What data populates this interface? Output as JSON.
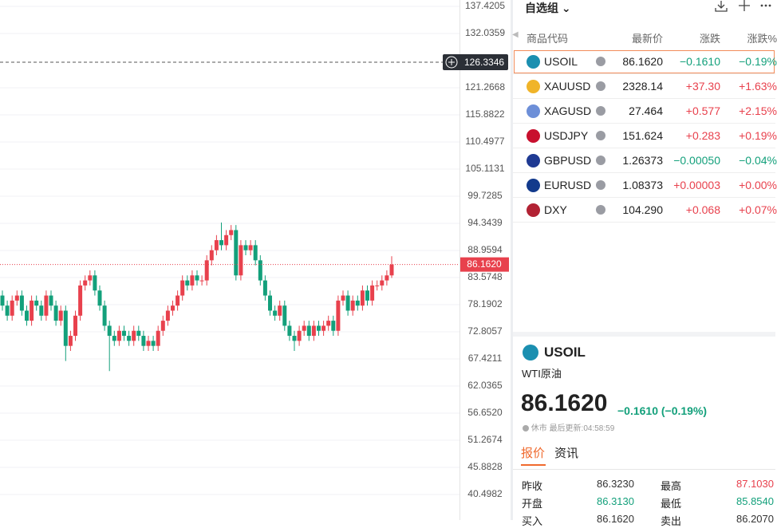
{
  "chart_data": {
    "type": "candlestick",
    "open": [
      80,
      78,
      76,
      79,
      80,
      77,
      75,
      79,
      78,
      76,
      80,
      78,
      75,
      77,
      70,
      72,
      76,
      82,
      83,
      84,
      81,
      78,
      74,
      72,
      71,
      73,
      72,
      71,
      73,
      72,
      70,
      71,
      70,
      73,
      75,
      77,
      78,
      80,
      83,
      82,
      84,
      83,
      83,
      87,
      89,
      91,
      90,
      92,
      93,
      84,
      90,
      89,
      90,
      87,
      83,
      80,
      77,
      76,
      78,
      74,
      72,
      71,
      73,
      74,
      72,
      74,
      73,
      74,
      75,
      73,
      79,
      80,
      77,
      79,
      78,
      81,
      79,
      82,
      82,
      83,
      84
    ],
    "high": [
      81,
      79,
      80,
      81,
      81,
      78,
      80,
      80,
      79,
      81,
      81,
      79,
      78,
      78,
      73,
      77,
      83,
      84,
      85,
      85,
      82,
      79,
      75,
      73,
      74,
      74,
      73,
      74,
      74,
      73,
      72,
      72,
      74,
      76,
      78,
      79,
      81,
      84,
      84,
      85,
      85,
      84,
      88,
      90,
      92,
      94.5,
      93,
      94,
      94,
      91,
      91,
      91,
      91,
      88,
      84,
      81,
      78,
      79,
      79,
      75,
      73,
      74,
      75,
      75,
      75,
      75,
      75,
      76,
      76,
      80,
      81,
      81,
      80,
      80,
      82,
      82,
      83,
      83,
      84,
      85,
      87.8
    ],
    "low": [
      77,
      75,
      75,
      78,
      76,
      74,
      74,
      77,
      75,
      75,
      77,
      74,
      74,
      67,
      69,
      71,
      75,
      81,
      82,
      80,
      77,
      73,
      65,
      70,
      70,
      71,
      70,
      70,
      71,
      69,
      69,
      69,
      69,
      72,
      74,
      76,
      77,
      79,
      81,
      81,
      82,
      82,
      82,
      86,
      88,
      89,
      89,
      91,
      83,
      83,
      88,
      88,
      86,
      82,
      79,
      76,
      75,
      75,
      73,
      71,
      69,
      70,
      72,
      71,
      71,
      72,
      72,
      73,
      72,
      72,
      78,
      76,
      76,
      77,
      77,
      78,
      78,
      81,
      81,
      82,
      83.5
    ],
    "close": [
      78,
      76,
      79,
      80,
      77,
      75,
      79,
      78,
      76,
      80,
      78,
      75,
      77,
      70,
      72,
      76,
      82,
      83,
      84,
      81,
      78,
      74,
      72,
      71,
      73,
      72,
      71,
      73,
      72,
      70,
      71,
      70,
      73,
      75,
      77,
      78,
      80,
      83,
      82,
      84,
      83,
      83,
      87,
      89,
      91,
      90,
      92,
      93,
      84,
      90,
      89,
      90,
      87,
      83,
      80,
      77,
      76,
      78,
      74,
      72,
      71,
      73,
      74,
      72,
      74,
      73,
      74,
      75,
      73,
      79,
      80,
      77,
      79,
      78,
      81,
      79,
      82,
      82,
      83,
      84,
      86.162
    ],
    "ylim": [
      35.42,
      138.69
    ],
    "yticks": [
      137.4205,
      132.0359,
      121.2668,
      115.8822,
      110.4977,
      105.1131,
      99.7285,
      94.3439,
      88.9594,
      83.5748,
      78.1902,
      72.8057,
      67.4211,
      62.0365,
      {
        "value": 56.652,
        "label": "56.6520"
      },
      51.2674,
      45.8828,
      40.4982
    ],
    "last_price": {
      "value": 86.162,
      "label": "86.1620"
    },
    "crosshair": 126.3346,
    "up_color": "#e8414d",
    "down_color": "#13a07b",
    "grid": true
  },
  "watchlist": {
    "title": "自选组",
    "columns": [
      "商品代码",
      "最新价",
      "涨跌",
      "涨跌%"
    ],
    "rows": [
      {
        "symbol": "USOIL",
        "price": "86.1620",
        "change": "−0.1610",
        "pct": "−0.19%",
        "color": "#13a07b",
        "icon": "#1b8fb0"
      },
      {
        "symbol": "XAUUSD",
        "price": "2328.14",
        "change": "+37.30",
        "pct": "+1.63%",
        "color": "#e8414d",
        "icon": "#f0b429"
      },
      {
        "symbol": "XAGUSD",
        "price": "27.464",
        "change": "+0.577",
        "pct": "+2.15%",
        "color": "#e8414d",
        "icon": "#6d8fd8"
      },
      {
        "symbol": "USDJPY",
        "price": "151.624",
        "change": "+0.283",
        "pct": "+0.19%",
        "color": "#e8414d",
        "icon": "#c8102e"
      },
      {
        "symbol": "GBPUSD",
        "price": "1.26373",
        "change": "−0.00050",
        "pct": "−0.04%",
        "color": "#13a07b",
        "icon": "#1f3a93"
      },
      {
        "symbol": "EURUSD",
        "price": "1.08373",
        "change": "+0.00003",
        "pct": "+0.00%",
        "color": "#e8414d",
        "icon": "#123a8c"
      },
      {
        "symbol": "DXY",
        "price": "104.290",
        "change": "+0.068",
        "pct": "+0.07%",
        "color": "#e8414d",
        "icon": "#b22234"
      }
    ]
  },
  "detail": {
    "symbol": "USOIL",
    "name": "WTI原油",
    "price": "86.1620",
    "change": "−0.1610 (−0.19%)",
    "status": "休市",
    "updated": "最后更新:04:58:59",
    "tabs": [
      "报价",
      "资讯"
    ],
    "stats": [
      {
        "label": "昨收",
        "value": "86.3230",
        "color": "#333333"
      },
      {
        "label": "最高",
        "value": "87.1030",
        "color": "#e8414d"
      },
      {
        "label": "开盘",
        "value": "86.3130",
        "color": "#13a07b"
      },
      {
        "label": "最低",
        "value": "85.8540",
        "color": "#13a07b"
      },
      {
        "label": "买入",
        "value": "86.1620",
        "color": "#333333"
      },
      {
        "label": "卖出",
        "value": "86.2070",
        "color": "#333333"
      }
    ]
  }
}
